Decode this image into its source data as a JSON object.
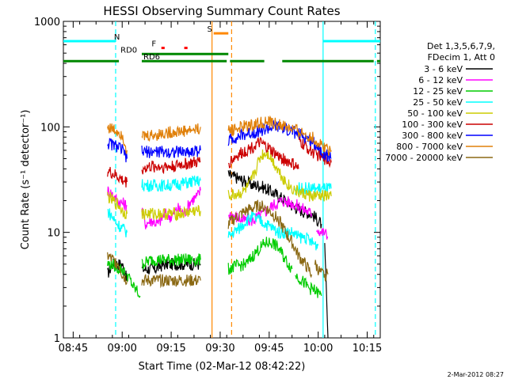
{
  "chart_data": {
    "type": "line",
    "title": "HESSI Observing Summary Count Rates",
    "xlabel": "Start Time (02-Mar-12 08:42:22)",
    "ylabel": "Count Rate (s⁻¹ detector⁻¹)",
    "yscale": "log",
    "ylim": [
      1,
      1000
    ],
    "xlim_minutes_after_0842": [
      0,
      97
    ],
    "x_ticks": [
      {
        "label": "08:45",
        "min": 3
      },
      {
        "label": "09:00",
        "min": 18
      },
      {
        "label": "09:15",
        "min": 33
      },
      {
        "label": "09:30",
        "min": 48
      },
      {
        "label": "09:45",
        "min": 63
      },
      {
        "label": "10:00",
        "min": 78
      },
      {
        "label": "10:15",
        "min": 93
      }
    ],
    "y_ticks": [
      {
        "label": "1",
        "value": 1
      },
      {
        "label": "10",
        "value": 10
      },
      {
        "label": "100",
        "value": 100
      },
      {
        "label": "1000",
        "value": 1000
      }
    ],
    "legend": {
      "header": [
        "Det 1,3,5,6,7,9,",
        "FDecim 1, Att 0"
      ],
      "placement": "right"
    },
    "footer_date": "2-Mar-2012 08:27",
    "series": [
      {
        "name": "3 - 6 keV",
        "color": "#000000",
        "segments": [
          {
            "x": [
              13.5,
              15,
              17,
              18,
              19.5
            ],
            "y": [
              4,
              5,
              5,
              5,
              3.5
            ]
          },
          {
            "x": [
              24,
              26,
              28,
              31,
              34,
              37,
              40,
              42
            ],
            "y": [
              4.5,
              4.5,
              4.5,
              5,
              5,
              5,
              5,
              5
            ]
          },
          {
            "x": [
              50.5,
              53,
              56,
              58,
              60,
              63,
              66,
              68,
              70,
              73,
              76,
              79
            ],
            "y": [
              35,
              33,
              30,
              28,
              28,
              25,
              22,
              20,
              18,
              16,
              15,
              12
            ]
          },
          {
            "x": [
              80,
              81
            ],
            "y": [
              7,
              1
            ]
          }
        ]
      },
      {
        "name": "6 - 12 keV",
        "color": "#ff00ff",
        "segments": [
          {
            "x": [
              13.5,
              15,
              16.5,
              18,
              19.5
            ],
            "y": [
              25,
              23,
              20,
              19,
              18
            ]
          },
          {
            "x": [
              24,
              25,
              27,
              29,
              31,
              33,
              35,
              37,
              39,
              41,
              42
            ],
            "y": [
              17,
              12,
              13,
              12,
              15,
              14,
              17,
              15,
              20,
              22,
              25
            ]
          },
          {
            "x": [
              50.5,
              53,
              55,
              58,
              61,
              64,
              67,
              70,
              73,
              76
            ],
            "y": [
              15,
              14,
              13,
              13,
              15,
              18,
              20,
              19,
              17,
              15
            ]
          },
          {
            "x": [
              77.5,
              79,
              80,
              81
            ],
            "y": [
              11,
              10,
              10,
              9
            ]
          }
        ]
      },
      {
        "name": "12 - 25 keV",
        "color": "#00cc00",
        "segments": [
          {
            "x": [
              13.5,
              15,
              17,
              18,
              19
            ],
            "y": [
              5,
              5,
              4.5,
              4.5,
              4
            ]
          },
          {
            "x": [
              19.5,
              20.5,
              21.5,
              22.5,
              23.5
            ],
            "y": [
              4,
              3.5,
              3,
              2.8,
              2.5
            ]
          },
          {
            "x": [
              24,
              27,
              30,
              33,
              36,
              39,
              42
            ],
            "y": [
              5,
              5.5,
              5.5,
              5.5,
              5.5,
              5.5,
              5.5
            ]
          },
          {
            "x": [
              50.5,
              53,
              56,
              58,
              60,
              62,
              64,
              66,
              68,
              70
            ],
            "y": [
              4.5,
              4.8,
              5,
              6,
              7,
              8,
              8,
              7,
              5.5,
              4.5
            ]
          },
          {
            "x": [
              71,
              73,
              75,
              77,
              79
            ],
            "y": [
              4,
              3.5,
              3,
              2.8,
              2.5
            ]
          }
        ]
      },
      {
        "name": "25 - 50 keV",
        "color": "#00ffff",
        "segments": [
          {
            "x": [
              13.5,
              15,
              16.5,
              18,
              19.5
            ],
            "y": [
              16,
              14,
              12,
              11,
              10
            ]
          },
          {
            "x": [
              24,
              27,
              30,
              33,
              36,
              39,
              42
            ],
            "y": [
              28,
              28,
              28,
              28,
              29,
              30,
              31
            ]
          },
          {
            "x": [
              50.5,
              52,
              54,
              56,
              58,
              60,
              62,
              64,
              66,
              68,
              70,
              72,
              74,
              76,
              78
            ],
            "y": [
              9,
              10,
              11,
              13,
              14,
              13,
              12,
              11,
              10,
              10,
              10,
              9,
              9,
              8,
              7.5
            ]
          },
          {
            "x": [
              71,
              74,
              77,
              80,
              82
            ],
            "y": [
              26,
              26,
              26,
              26,
              26
            ]
          }
        ]
      },
      {
        "name": "50 - 100 keV",
        "color": "#cccc00",
        "segments": [
          {
            "x": [
              13.5,
              15,
              17,
              18,
              19.5
            ],
            "y": [
              22,
              20,
              18,
              16,
              15
            ]
          },
          {
            "x": [
              24,
              28,
              32,
              36,
              40,
              42
            ],
            "y": [
              15,
              15,
              15,
              15,
              16,
              16
            ]
          },
          {
            "x": [
              50.5,
              53,
              55,
              57,
              59,
              60,
              61,
              62,
              63,
              64,
              66,
              68,
              70,
              72,
              74,
              76,
              78,
              80,
              82
            ],
            "y": [
              22,
              23,
              24,
              28,
              40,
              50,
              55,
              57,
              55,
              48,
              38,
              30,
              26,
              24,
              23,
              22,
              22,
              22,
              22
            ]
          }
        ]
      },
      {
        "name": "100 - 300 keV",
        "color": "#cc0000",
        "segments": [
          {
            "x": [
              13.5,
              15,
              17,
              18,
              19.5
            ],
            "y": [
              38,
              36,
              33,
              31,
              30
            ]
          },
          {
            "x": [
              24,
              27,
              30,
              33,
              36,
              39,
              41,
              42
            ],
            "y": [
              40,
              42,
              42,
              42,
              44,
              45,
              46,
              47
            ]
          },
          {
            "x": [
              50.5,
              52,
              54,
              56,
              58,
              60,
              62,
              64,
              66,
              68,
              70,
              72
            ],
            "y": [
              45,
              50,
              55,
              60,
              65,
              70,
              65,
              58,
              52,
              48,
              45,
              40
            ]
          },
          {
            "x": [
              72,
              73,
              75,
              77,
              79,
              81,
              82
            ],
            "y": [
              75,
              70,
              62,
              56,
              52,
              48,
              46
            ]
          }
        ]
      },
      {
        "name": "300 - 800 keV",
        "color": "#0000ff",
        "segments": [
          {
            "x": [
              13.5,
              15,
              17,
              18,
              19.5
            ],
            "y": [
              70,
              68,
              64,
              60,
              50
            ]
          },
          {
            "x": [
              24,
              27,
              30,
              33,
              36,
              39,
              42
            ],
            "y": [
              58,
              58,
              58,
              58,
              58,
              58,
              60
            ]
          },
          {
            "x": [
              50.5,
              53,
              56,
              59,
              62,
              65,
              68,
              71,
              74,
              77,
              80,
              82
            ],
            "y": [
              75,
              80,
              85,
              90,
              95,
              100,
              95,
              88,
              80,
              70,
              55,
              50
            ]
          }
        ]
      },
      {
        "name": "800 - 7000 keV",
        "color": "#e0800a",
        "segments": [
          {
            "x": [
              13.5,
              15,
              17,
              18,
              19.5
            ],
            "y": [
              100,
              95,
              90,
              85,
              60
            ]
          },
          {
            "x": [
              24,
              26,
              29,
              32,
              35,
              38,
              41,
              42
            ],
            "y": [
              80,
              82,
              85,
              88,
              90,
              92,
              95,
              100
            ]
          },
          {
            "x": [
              50.5,
              52,
              55,
              58,
              61,
              64,
              66,
              68,
              70,
              72,
              74,
              76,
              78,
              80,
              82
            ],
            "y": [
              90,
              95,
              100,
              105,
              110,
              108,
              105,
              100,
              95,
              90,
              85,
              80,
              70,
              65,
              60
            ]
          }
        ]
      },
      {
        "name": "7000 - 20000 keV",
        "color": "#8b6914",
        "segments": [
          {
            "x": [
              13.5,
              15,
              17,
              18,
              19.5
            ],
            "y": [
              6,
              5.5,
              5,
              4,
              3.5
            ]
          },
          {
            "x": [
              24,
              27,
              30,
              33,
              36,
              39,
              42
            ],
            "y": [
              3.5,
              3.5,
              3.5,
              3.5,
              3.5,
              3.5,
              3.5
            ]
          },
          {
            "x": [
              50.5,
              53,
              56,
              58,
              60,
              62,
              64,
              66,
              68,
              70,
              72,
              74,
              76
            ],
            "y": [
              12,
              14,
              16,
              17,
              18,
              17,
              15,
              13,
              10,
              8,
              6,
              5,
              4
            ]
          },
          {
            "x": [
              77,
              79,
              81
            ],
            "y": [
              5,
              4,
              4
            ]
          }
        ]
      }
    ],
    "state_bars": [
      {
        "name": "N",
        "color": "#00ffff",
        "y": 650,
        "label_at_min": 15.5,
        "segments": [
          [
            0,
            16
          ],
          [
            79.5,
            97
          ]
        ]
      },
      {
        "name": "F",
        "color": "#ff0000",
        "y": 560,
        "label_at_min": 27,
        "segments": [
          [
            30,
            31
          ],
          [
            37,
            38
          ]
        ]
      },
      {
        "name": "S",
        "color": "#ff8800",
        "y": 770,
        "label_at_min": 44,
        "segments": [
          [
            46,
            50.5
          ]
        ]
      },
      {
        "name": "RD0",
        "color": "#008800",
        "y": 490,
        "label_at_min": 17.5,
        "segments": [
          [
            24,
            50.5
          ]
        ]
      },
      {
        "name": "RD6",
        "color": "#008800",
        "y": 420,
        "label_at_min": 24.5,
        "segments": [
          [
            0,
            17
          ],
          [
            24,
            50
          ],
          [
            51,
            61.5
          ],
          [
            67,
            95
          ],
          [
            96,
            97
          ]
        ]
      }
    ],
    "vertical_lines": [
      {
        "min": 16,
        "color": "#00ffff",
        "dash": true
      },
      {
        "min": 45.5,
        "color": "#ff8800",
        "dash": false
      },
      {
        "min": 51.5,
        "color": "#ff8800",
        "dash": true
      },
      {
        "min": 79.5,
        "color": "#00ffff",
        "dash": false
      },
      {
        "min": 95.5,
        "color": "#00ffff",
        "dash": true
      }
    ]
  }
}
